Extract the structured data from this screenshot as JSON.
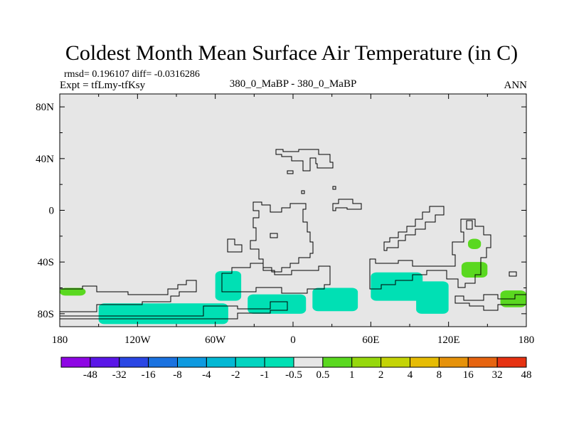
{
  "chart_data": {
    "type": "heatmap",
    "title": "Coldest Month Mean Surface Air Temperature (in C)",
    "stats": "rmsd= 0.196107 diff= -0.0316286",
    "experiment": "Expt = tfLmy-tfKsy",
    "subtitle": "380_0_MaBP - 380_0_MaBP",
    "season": "ANN",
    "x_range": [
      -180,
      180
    ],
    "y_range": [
      -90,
      90
    ],
    "x_ticks": [
      {
        "value": -180,
        "label": "180"
      },
      {
        "value": -120,
        "label": "120W"
      },
      {
        "value": -60,
        "label": "60W"
      },
      {
        "value": 0,
        "label": "0"
      },
      {
        "value": 60,
        "label": "60E"
      },
      {
        "value": 120,
        "label": "120E"
      },
      {
        "value": 180,
        "label": "180"
      }
    ],
    "y_ticks": [
      {
        "value": 80,
        "label": "80N"
      },
      {
        "value": 40,
        "label": "40N"
      },
      {
        "value": 0,
        "label": "0"
      },
      {
        "value": -40,
        "label": "40S"
      },
      {
        "value": -80,
        "label": "80S"
      }
    ],
    "legend": {
      "levels": [
        "-48",
        "-32",
        "-16",
        "-8",
        "-4",
        "-2",
        "-1",
        "-0.5",
        "0.5",
        "1",
        "2",
        "4",
        "8",
        "16",
        "32",
        "48"
      ],
      "colors": [
        "#8e06e4",
        "#5a16e8",
        "#2a46e4",
        "#1a72e0",
        "#0e9ae0",
        "#02b8d4",
        "#02d4c0",
        "#00e0b4",
        "#e6e6e6",
        "#5ad820",
        "#96d80c",
        "#c4d406",
        "#e6bc04",
        "#e6920a",
        "#e66410",
        "#e63212"
      ]
    },
    "regions": [
      {
        "class": "-0.5 to -1",
        "lon": [
          -60,
          -40
        ],
        "lat": [
          -70,
          -47
        ]
      },
      {
        "class": "-0.5 to -1",
        "lon": [
          -150,
          -50
        ],
        "lat": [
          -88,
          -72
        ]
      },
      {
        "class": "-0.5 to -1",
        "lon": [
          -35,
          10
        ],
        "lat": [
          -80,
          -65
        ]
      },
      {
        "class": "-0.5 to -1",
        "lon": [
          15,
          50
        ],
        "lat": [
          -78,
          -60
        ]
      },
      {
        "class": "-0.5 to -1",
        "lon": [
          60,
          100
        ],
        "lat": [
          -70,
          -48
        ]
      },
      {
        "class": "-0.5 to -1",
        "lon": [
          95,
          120
        ],
        "lat": [
          -80,
          -55
        ]
      },
      {
        "class": "0.5 to 1",
        "lon": [
          -180,
          -160
        ],
        "lat": [
          -66,
          -60
        ]
      },
      {
        "class": "0.5 to 1",
        "lon": [
          130,
          150
        ],
        "lat": [
          -52,
          -40
        ]
      },
      {
        "class": "0.5 to 1",
        "lon": [
          135,
          145
        ],
        "lat": [
          -30,
          -22
        ]
      },
      {
        "class": "0.5 to 1",
        "lon": [
          160,
          180
        ],
        "lat": [
          -75,
          -62
        ]
      }
    ]
  }
}
